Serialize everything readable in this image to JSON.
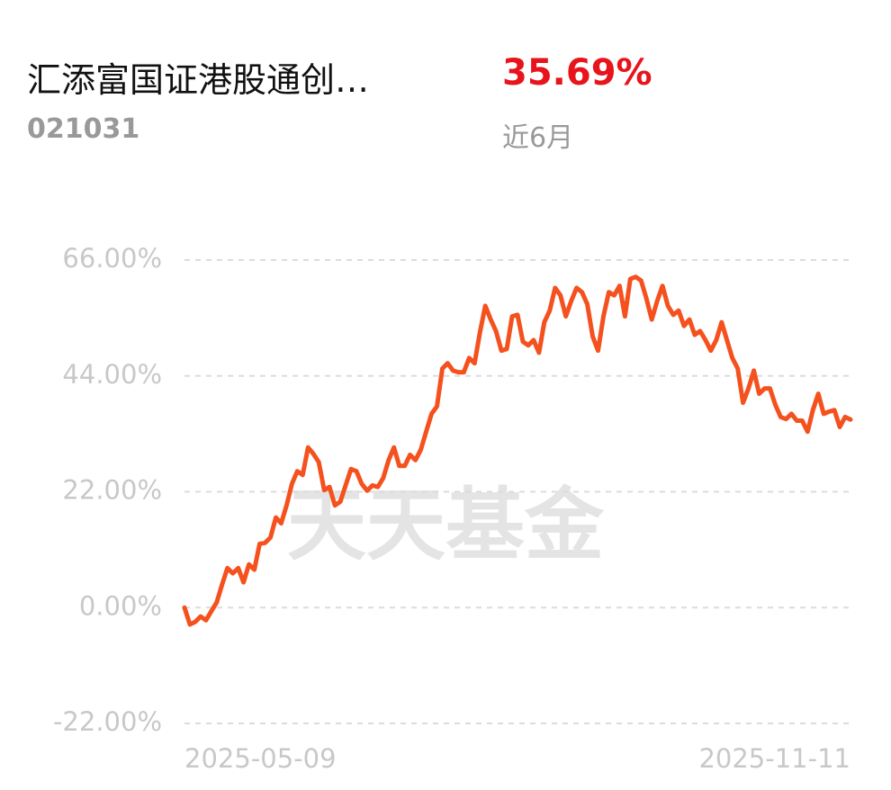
{
  "header": {
    "name": "汇添富国证港股通创…",
    "code": "021031",
    "return": "35.69%",
    "period": "近6月"
  },
  "chart_data": {
    "type": "line",
    "watermark": "天天基金",
    "categories": [
      "2025-05-09",
      null,
      null,
      null,
      null,
      null,
      null,
      null,
      null,
      null,
      null,
      null,
      null,
      null,
      null,
      null,
      null,
      null,
      null,
      null,
      null,
      null,
      null,
      null,
      null,
      null,
      null,
      null,
      null,
      null,
      null,
      null,
      null,
      null,
      null,
      null,
      null,
      null,
      null,
      null,
      null,
      null,
      null,
      null,
      null,
      null,
      null,
      null,
      null,
      null,
      null,
      null,
      null,
      null,
      null,
      null,
      null,
      null,
      null,
      null,
      null,
      null,
      null,
      null,
      null,
      null,
      null,
      null,
      null,
      null,
      null,
      null,
      null,
      null,
      null,
      null,
      null,
      null,
      null,
      null,
      null,
      null,
      null,
      null,
      null,
      null,
      null,
      null,
      null,
      null,
      null,
      null,
      null,
      null,
      null,
      null,
      null,
      null,
      null,
      null,
      null,
      null,
      null,
      null,
      null,
      null,
      null,
      null,
      null,
      null,
      null,
      null,
      null,
      null,
      null,
      null,
      null,
      null,
      null,
      null,
      null,
      null,
      null,
      null,
      "2025-11-11"
    ],
    "series": [
      {
        "color": "#f4511e",
        "values": [
          0,
          -3.2,
          -2.7,
          -1.7,
          -2.4,
          -0.7,
          1.0,
          4.4,
          7.5,
          6.5,
          7.5,
          4.8,
          8.2,
          7.2,
          12.1,
          12.3,
          13.3,
          17.1,
          16.0,
          19.4,
          23.5,
          25.9,
          25.2,
          30.4,
          29.2,
          27.6,
          22.3,
          22.9,
          19.4,
          20.1,
          23.2,
          26.3,
          25.9,
          23.5,
          22.2,
          23.2,
          22.9,
          24.6,
          28.0,
          30.4,
          26.9,
          26.9,
          29.0,
          28.0,
          30.0,
          33.4,
          36.8,
          38.2,
          45.4,
          46.4,
          45.0,
          44.7,
          44.7,
          47.4,
          46.4,
          52.2,
          57.3,
          54.7,
          52.5,
          48.8,
          49.1,
          55.3,
          55.6,
          50.5,
          49.8,
          50.8,
          48.4,
          54.2,
          56.4,
          60.7,
          59.3,
          55.3,
          58.2,
          60.7,
          59.9,
          57.6,
          51.5,
          48.8,
          55.3,
          59.9,
          59.3,
          61.1,
          55.3,
          62.4,
          62.8,
          62.1,
          58.7,
          54.7,
          58.2,
          61.1,
          57.3,
          55.6,
          56.4,
          53.5,
          54.7,
          51.8,
          52.5,
          50.8,
          48.8,
          50.8,
          54.2,
          50.8,
          47.4,
          45.4,
          38.9,
          41.6,
          45.0,
          40.6,
          41.6,
          41.6,
          38.5,
          36.2,
          35.8,
          36.8,
          35.5,
          35.5,
          33.4,
          37.5,
          40.6,
          36.8,
          37.2,
          37.5,
          34.3,
          36.2,
          35.7
        ]
      }
    ],
    "ylim": [
      -22,
      66
    ],
    "yticks": [
      {
        "value": -22,
        "label": "-22.00%"
      },
      {
        "value": 0,
        "label": "0.00%"
      },
      {
        "value": 22,
        "label": "22.00%"
      },
      {
        "value": 44,
        "label": "44.00%"
      },
      {
        "value": 66,
        "label": "66.00%"
      }
    ],
    "grid": true
  }
}
